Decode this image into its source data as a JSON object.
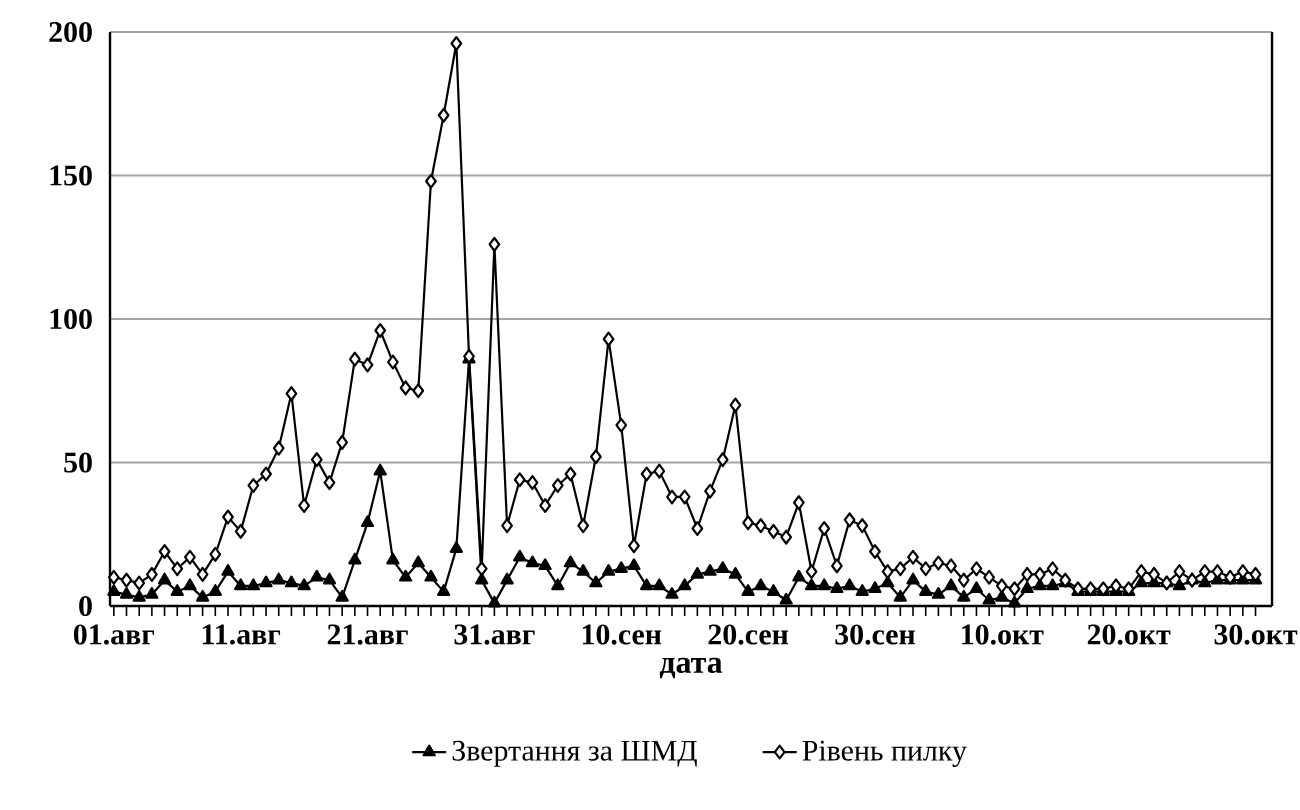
{
  "chart_data": {
    "type": "line",
    "xlabel": "дата",
    "categories": [
      "01.авг",
      null,
      null,
      null,
      null,
      null,
      null,
      null,
      null,
      null,
      "11.авг",
      null,
      null,
      null,
      null,
      null,
      null,
      null,
      null,
      null,
      "21.авг",
      null,
      null,
      null,
      null,
      null,
      null,
      null,
      null,
      null,
      "31.авг",
      null,
      null,
      null,
      null,
      null,
      null,
      null,
      null,
      null,
      "10.сен",
      null,
      null,
      null,
      null,
      null,
      null,
      null,
      null,
      null,
      "20.сен",
      null,
      null,
      null,
      null,
      null,
      null,
      null,
      null,
      null,
      "30.сен",
      null,
      null,
      null,
      null,
      null,
      null,
      null,
      null,
      null,
      "10.окт",
      null,
      null,
      null,
      null,
      null,
      null,
      null,
      null,
      null,
      "20.окт",
      null,
      null,
      null,
      null,
      null,
      null,
      null,
      null,
      null,
      "30.окт"
    ],
    "series": [
      {
        "name": "Звертання за ШМД",
        "color": "#000000",
        "marker": "triangle",
        "values": [
          5,
          4,
          3,
          4,
          9,
          5,
          7,
          3,
          5,
          12,
          7,
          7,
          8,
          9,
          8,
          7,
          10,
          9,
          3,
          16,
          29,
          47,
          16,
          10,
          15,
          10,
          5,
          20,
          86,
          9,
          1,
          9,
          17,
          15,
          14,
          7,
          15,
          12,
          8,
          12,
          13,
          14,
          7,
          7,
          4,
          7,
          11,
          12,
          13,
          11,
          5,
          7,
          5,
          2,
          10,
          7,
          7,
          6,
          7,
          5,
          6,
          8,
          3,
          9,
          5,
          4,
          7,
          3,
          6,
          2,
          3,
          1,
          6,
          7,
          7,
          8,
          5,
          5,
          5,
          5,
          5,
          8,
          8,
          8,
          7,
          9,
          8,
          9,
          9,
          9,
          9
        ]
      },
      {
        "name": "Рівень пилку",
        "color": "#000000",
        "marker": "diamond",
        "values": [
          10,
          9,
          8,
          11,
          19,
          13,
          17,
          11,
          18,
          31,
          26,
          42,
          46,
          55,
          74,
          35,
          51,
          43,
          57,
          86,
          84,
          96,
          85,
          76,
          75,
          148,
          171,
          196,
          87,
          13,
          126,
          28,
          44,
          43,
          35,
          42,
          46,
          28,
          52,
          93,
          63,
          21,
          46,
          47,
          38,
          38,
          27,
          40,
          51,
          70,
          29,
          28,
          26,
          24,
          36,
          12,
          27,
          14,
          30,
          28,
          19,
          12,
          13,
          17,
          13,
          15,
          14,
          9,
          13,
          10,
          7,
          6,
          11,
          11,
          13,
          9,
          6,
          6,
          6,
          7,
          6,
          12,
          11,
          8,
          12,
          9,
          12,
          12,
          10,
          12,
          11
        ]
      }
    ],
    "ylim": [
      0,
      200
    ],
    "yticks": [
      0,
      50,
      100,
      150,
      200
    ],
    "grid": "y",
    "legend": "bottom",
    "line_style": "solid"
  }
}
